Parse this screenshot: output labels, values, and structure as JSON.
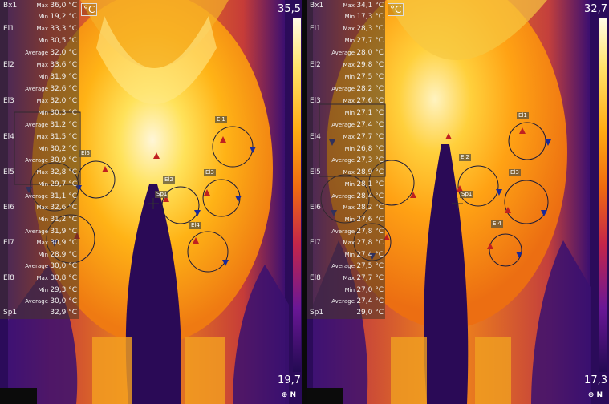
{
  "unit": "°C",
  "logo_text": "⊕ N",
  "panels": [
    {
      "scale_max": "35,5",
      "scale_min": "19,7",
      "rows": [
        {
          "group": "Bx1",
          "kind": "Max",
          "value": "36,0 °C"
        },
        {
          "group": "",
          "kind": "Min",
          "value": "19,2 °C"
        },
        {
          "group": "El1",
          "kind": "Max",
          "value": "33,3 °C"
        },
        {
          "group": "",
          "kind": "Min",
          "value": "30,5 °C"
        },
        {
          "group": "",
          "kind": "Average",
          "value": "32,0 °C"
        },
        {
          "group": "El2",
          "kind": "Max",
          "value": "33,6 °C"
        },
        {
          "group": "",
          "kind": "Min",
          "value": "31,9 °C"
        },
        {
          "group": "",
          "kind": "Average",
          "value": "32,6 °C"
        },
        {
          "group": "El3",
          "kind": "Max",
          "value": "32,0 °C"
        },
        {
          "group": "",
          "kind": "Min",
          "value": "30,3 °C"
        },
        {
          "group": "",
          "kind": "Average",
          "value": "31,2 °C"
        },
        {
          "group": "El4",
          "kind": "Max",
          "value": "31,5 °C"
        },
        {
          "group": "",
          "kind": "Min",
          "value": "30,2 °C"
        },
        {
          "group": "",
          "kind": "Average",
          "value": "30,9 °C"
        },
        {
          "group": "El5",
          "kind": "Max",
          "value": "32,8 °C"
        },
        {
          "group": "",
          "kind": "Min",
          "value": "29,7 °C"
        },
        {
          "group": "",
          "kind": "Average",
          "value": "31,1 °C"
        },
        {
          "group": "El6",
          "kind": "Max",
          "value": "32,6 °C"
        },
        {
          "group": "",
          "kind": "Min",
          "value": "31,2 °C"
        },
        {
          "group": "",
          "kind": "Average",
          "value": "31,9 °C"
        },
        {
          "group": "El7",
          "kind": "Max",
          "value": "30,9 °C"
        },
        {
          "group": "",
          "kind": "Min",
          "value": "28,9 °C"
        },
        {
          "group": "",
          "kind": "Average",
          "value": "30,0 °C"
        },
        {
          "group": "El8",
          "kind": "Max",
          "value": "30,8 °C"
        },
        {
          "group": "",
          "kind": "Min",
          "value": "29,3 °C"
        },
        {
          "group": "",
          "kind": "Average",
          "value": "30,0 °C"
        },
        {
          "group": "Sp1",
          "kind": "",
          "value": "32,9 °C"
        }
      ],
      "tags": [
        "El1",
        "El2",
        "El3",
        "El4",
        "El6",
        "Sp1"
      ]
    },
    {
      "scale_max": "32,7",
      "scale_min": "17,3",
      "rows": [
        {
          "group": "Bx1",
          "kind": "Max",
          "value": "34,1 °C"
        },
        {
          "group": "",
          "kind": "Min",
          "value": "17,3 °C"
        },
        {
          "group": "El1",
          "kind": "Max",
          "value": "28,3 °C"
        },
        {
          "group": "",
          "kind": "Min",
          "value": "27,7 °C"
        },
        {
          "group": "",
          "kind": "Average",
          "value": "28,0 °C"
        },
        {
          "group": "El2",
          "kind": "Max",
          "value": "29,8 °C"
        },
        {
          "group": "",
          "kind": "Min",
          "value": "27,5 °C"
        },
        {
          "group": "",
          "kind": "Average",
          "value": "28,2 °C"
        },
        {
          "group": "El3",
          "kind": "Max",
          "value": "27,6 °C"
        },
        {
          "group": "",
          "kind": "Min",
          "value": "27,1 °C"
        },
        {
          "group": "",
          "kind": "Average",
          "value": "27,4 °C"
        },
        {
          "group": "El4",
          "kind": "Max",
          "value": "27,7 °C"
        },
        {
          "group": "",
          "kind": "Min",
          "value": "26,8 °C"
        },
        {
          "group": "",
          "kind": "Average",
          "value": "27,3 °C"
        },
        {
          "group": "El5",
          "kind": "Max",
          "value": "28,9 °C"
        },
        {
          "group": "",
          "kind": "Min",
          "value": "28,1 °C"
        },
        {
          "group": "",
          "kind": "Average",
          "value": "28,4 °C"
        },
        {
          "group": "El6",
          "kind": "Max",
          "value": "28,2 °C"
        },
        {
          "group": "",
          "kind": "Min",
          "value": "27,6 °C"
        },
        {
          "group": "",
          "kind": "Average",
          "value": "27,8 °C"
        },
        {
          "group": "El7",
          "kind": "Max",
          "value": "27,8 °C"
        },
        {
          "group": "",
          "kind": "Min",
          "value": "27,4 °C"
        },
        {
          "group": "",
          "kind": "Average",
          "value": "27,5 °C"
        },
        {
          "group": "El8",
          "kind": "Max",
          "value": "27,7 °C"
        },
        {
          "group": "",
          "kind": "Min",
          "value": "27,0 °C"
        },
        {
          "group": "",
          "kind": "Average",
          "value": "27,4 °C"
        },
        {
          "group": "Sp1",
          "kind": "",
          "value": "29,0 °C"
        }
      ],
      "tags": [
        "El1",
        "El2",
        "El3",
        "El4",
        "Sp1"
      ]
    }
  ]
}
